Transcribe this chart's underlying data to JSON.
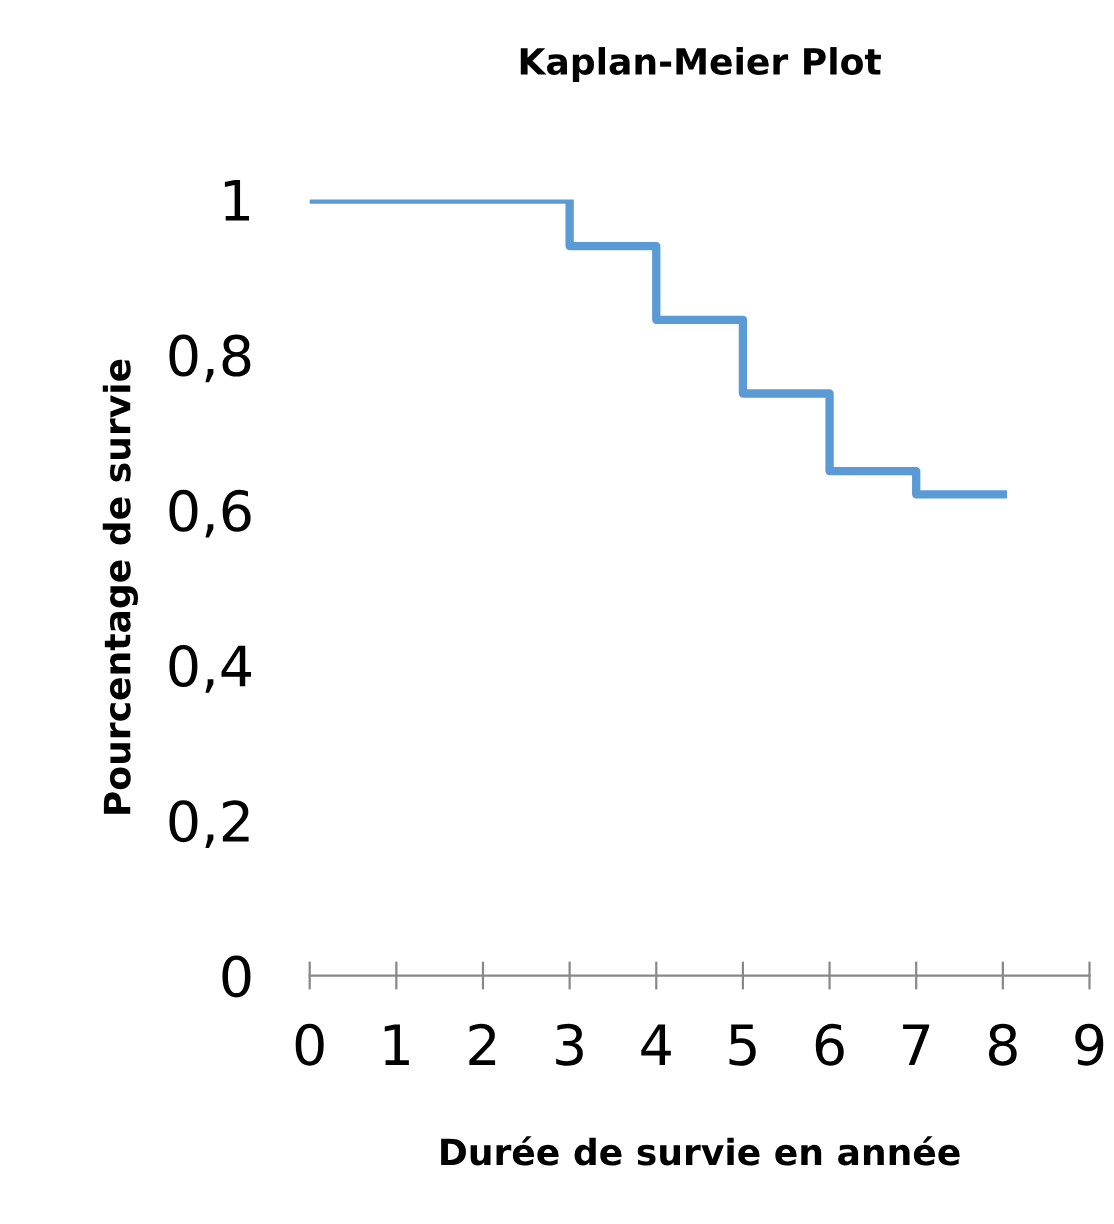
{
  "chart_data": {
    "type": "step",
    "title": "Kaplan-Meier Plot",
    "xlabel": "Durée de survie en année",
    "ylabel": "Pourcentage de survie",
    "x": [
      0,
      1,
      2,
      3,
      4,
      5,
      6,
      7,
      8
    ],
    "series": [
      {
        "color": "#5b9bd5",
        "values": [
          1,
          1,
          1,
          0.94,
          0.845,
          0.75,
          0.65,
          0.62,
          0.62
        ]
      }
    ],
    "xlim": [
      0,
      9
    ],
    "xticks": [
      0,
      1,
      2,
      3,
      4,
      5,
      6,
      7,
      8,
      9
    ],
    "ylim": [
      0,
      1
    ],
    "yticks": [
      0,
      {
        "value": 0.2,
        "label": "0,2"
      },
      {
        "value": 0.4,
        "label": "0,4"
      },
      {
        "value": 0.6,
        "label": "0,6"
      },
      {
        "value": 0.8,
        "label": "0,8"
      },
      1
    ],
    "grid": false
  }
}
